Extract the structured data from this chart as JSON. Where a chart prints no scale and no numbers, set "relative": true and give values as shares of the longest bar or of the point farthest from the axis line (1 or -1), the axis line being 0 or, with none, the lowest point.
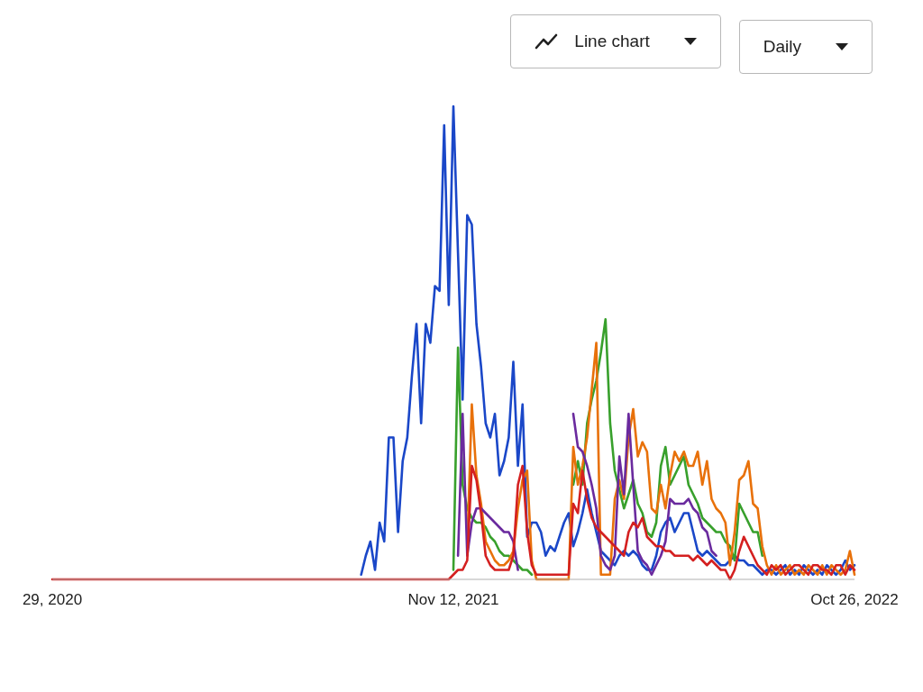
{
  "chart_data": {
    "type": "line",
    "relative": true,
    "annotations": [
      "Line chart",
      "Daily"
    ],
    "x": [
      "2020-11-29",
      "2021-08-20",
      "2021-08-24",
      "2021-08-28",
      "2021-09-01",
      "2021-09-05",
      "2021-09-09",
      "2021-09-13",
      "2021-09-17",
      "2021-09-21",
      "2021-09-25",
      "2021-09-29",
      "2021-10-03",
      "2021-10-07",
      "2021-10-11",
      "2021-10-15",
      "2021-10-19",
      "2021-10-23",
      "2021-10-27",
      "2021-10-31",
      "2021-11-04",
      "2021-11-08",
      "2021-11-12",
      "2021-11-16",
      "2021-11-20",
      "2021-11-24",
      "2021-11-28",
      "2021-12-02",
      "2021-12-06",
      "2021-12-10",
      "2021-12-14",
      "2021-12-18",
      "2021-12-22",
      "2021-12-26",
      "2021-12-30",
      "2022-01-03",
      "2022-01-07",
      "2022-01-11",
      "2022-01-15",
      "2022-01-19",
      "2022-01-23",
      "2022-01-27",
      "2022-01-31",
      "2022-02-04",
      "2022-02-08",
      "2022-02-12",
      "2022-02-16",
      "2022-02-20",
      "2022-02-24",
      "2022-02-28",
      "2022-03-04",
      "2022-03-08",
      "2022-03-12",
      "2022-03-16",
      "2022-03-20",
      "2022-03-24",
      "2022-03-28",
      "2022-04-01",
      "2022-04-05",
      "2022-04-09",
      "2022-04-13",
      "2022-04-17",
      "2022-04-21",
      "2022-04-25",
      "2022-04-29",
      "2022-05-03",
      "2022-05-07",
      "2022-05-11",
      "2022-05-15",
      "2022-05-19",
      "2022-05-23",
      "2022-05-27",
      "2022-05-31",
      "2022-06-04",
      "2022-06-08",
      "2022-06-12",
      "2022-06-16",
      "2022-06-20",
      "2022-06-24",
      "2022-06-28",
      "2022-07-02",
      "2022-07-06",
      "2022-07-10",
      "2022-07-14",
      "2022-07-18",
      "2022-07-22",
      "2022-07-26",
      "2022-07-30",
      "2022-08-03",
      "2022-08-07",
      "2022-08-11",
      "2022-08-15",
      "2022-08-19",
      "2022-08-23",
      "2022-08-27",
      "2022-08-31",
      "2022-09-04",
      "2022-09-08",
      "2022-09-12",
      "2022-09-16",
      "2022-09-20",
      "2022-09-24",
      "2022-09-28",
      "2022-10-02",
      "2022-10-06",
      "2022-10-10",
      "2022-10-14",
      "2022-10-18",
      "2022-10-22",
      "2022-10-26"
    ],
    "xlim": [
      "2020-11-29",
      "2022-10-26"
    ],
    "xticks": [
      {
        "value": "2020-11-29",
        "label": "29, 2020"
      },
      {
        "value": "2021-11-12",
        "label": "Nov 12, 2021"
      },
      {
        "value": "2022-10-26",
        "label": "Oct 26, 2022"
      }
    ],
    "series": [
      {
        "color": "#1a47c8",
        "values": [
          null,
          null,
          0.01,
          0.05,
          0.08,
          0.02,
          0.12,
          0.08,
          0.3,
          0.3,
          0.1,
          0.25,
          0.3,
          0.43,
          0.54,
          0.33,
          0.54,
          0.5,
          0.62,
          0.61,
          0.96,
          0.58,
          1.0,
          0.69,
          0.38,
          0.77,
          0.75,
          0.54,
          0.45,
          0.33,
          0.3,
          0.35,
          0.22,
          0.25,
          0.3,
          0.46,
          0.24,
          0.37,
          0.09,
          0.12,
          0.12,
          0.1,
          0.05,
          0.07,
          0.06,
          0.09,
          0.12,
          0.14,
          0.07,
          0.1,
          0.14,
          0.19,
          0.14,
          0.1,
          0.06,
          0.05,
          0.04,
          0.03,
          0.05,
          0.06,
          0.05,
          0.06,
          0.05,
          0.03,
          0.02,
          0.02,
          0.05,
          0.1,
          0.12,
          0.13,
          0.1,
          0.12,
          0.14,
          0.14,
          0.1,
          0.06,
          0.05,
          0.06,
          0.05,
          0.04,
          0.03,
          0.03,
          0.04,
          0.05,
          0.04,
          0.04,
          0.03,
          0.03,
          0.02,
          0.01,
          0.02,
          0.02,
          0.01,
          0.02,
          0.03,
          0.01,
          0.02,
          0.01,
          0.03,
          0.02,
          0.01,
          0.02,
          0.01,
          0.03,
          0.02,
          0.01,
          0.02,
          0.04,
          0.02,
          0.03
        ]
      },
      {
        "color": "#38a02c",
        "values": [
          null,
          null,
          null,
          null,
          null,
          null,
          null,
          null,
          null,
          null,
          null,
          null,
          null,
          null,
          null,
          null,
          null,
          null,
          null,
          null,
          null,
          null,
          0.02,
          0.49,
          0.2,
          0.15,
          0.13,
          0.12,
          0.12,
          0.11,
          0.09,
          0.08,
          0.06,
          0.05,
          0.05,
          0.04,
          0.03,
          0.02,
          0.02,
          0.01,
          null,
          null,
          null,
          null,
          null,
          null,
          null,
          null,
          0.2,
          0.25,
          0.2,
          0.33,
          0.38,
          0.42,
          0.48,
          0.55,
          0.33,
          0.23,
          0.19,
          0.15,
          0.18,
          0.21,
          0.16,
          0.14,
          0.1,
          0.09,
          0.12,
          0.24,
          0.28,
          0.2,
          0.22,
          0.24,
          0.26,
          0.2,
          0.18,
          0.16,
          0.13,
          0.12,
          0.11,
          0.1,
          0.1,
          0.08,
          0.07,
          0.04,
          0.16,
          0.14,
          0.12,
          0.1,
          0.1,
          0.05,
          null,
          null,
          null,
          null,
          null,
          null,
          null,
          null,
          null,
          null,
          null,
          null,
          null,
          null,
          null,
          null,
          null,
          null,
          null,
          null
        ]
      },
      {
        "color": "#e8710a",
        "values": [
          null,
          null,
          null,
          null,
          null,
          null,
          null,
          null,
          null,
          null,
          null,
          null,
          null,
          null,
          null,
          null,
          null,
          null,
          null,
          null,
          null,
          null,
          null,
          null,
          null,
          0.07,
          0.37,
          0.22,
          0.16,
          0.08,
          0.06,
          0.04,
          0.03,
          0.03,
          0.04,
          0.06,
          0.15,
          0.21,
          0.23,
          0.04,
          0,
          0,
          0,
          0,
          0,
          0,
          0,
          0,
          0.28,
          0.2,
          0.24,
          0.3,
          0.4,
          0.5,
          0.01,
          0.01,
          0.01,
          0.17,
          0.21,
          0.17,
          0.3,
          0.36,
          0.26,
          0.29,
          0.27,
          0.15,
          0.14,
          0.2,
          0.15,
          0.22,
          0.27,
          0.25,
          0.27,
          0.24,
          0.24,
          0.27,
          0.2,
          0.25,
          0.17,
          0.15,
          0.14,
          0.12,
          0.03,
          0.1,
          0.21,
          0.22,
          0.25,
          0.16,
          0.15,
          0.07,
          0.03,
          0.01,
          0.03,
          0.01,
          0.02,
          0.03,
          0.01,
          0.02,
          0.01,
          0.03,
          0.02,
          0.01,
          0.03,
          0.01,
          0.03,
          0.02,
          0.01,
          0.02,
          0.06,
          0.01
        ]
      },
      {
        "color": "#6a2a9e",
        "values": [
          null,
          null,
          null,
          null,
          null,
          null,
          null,
          null,
          null,
          null,
          null,
          null,
          null,
          null,
          null,
          null,
          null,
          null,
          null,
          null,
          null,
          null,
          null,
          0.05,
          0.35,
          0.05,
          0.12,
          0.15,
          0.15,
          0.14,
          0.13,
          0.12,
          0.11,
          0.1,
          0.1,
          0.08,
          0.02,
          null,
          null,
          null,
          null,
          null,
          null,
          null,
          null,
          null,
          null,
          null,
          0.35,
          0.28,
          0.27,
          0.24,
          0.2,
          0.15,
          0.05,
          0.03,
          0.02,
          0.05,
          0.26,
          0.18,
          0.35,
          0.2,
          0.06,
          0.04,
          0.03,
          0.01,
          0.03,
          0.05,
          0.08,
          0.17,
          0.16,
          0.16,
          0.16,
          0.17,
          0.15,
          0.14,
          0.11,
          0.1,
          0.06,
          0.05,
          null,
          null,
          null,
          null,
          null,
          null,
          null,
          null,
          null,
          null,
          null,
          null,
          null,
          null,
          null,
          null,
          null,
          null,
          null,
          null,
          null,
          null,
          null,
          null,
          null,
          null,
          null,
          null,
          null,
          null
        ]
      },
      {
        "color": "#d42020",
        "values": [
          0,
          0,
          0,
          0,
          0,
          0,
          0,
          0,
          0,
          0,
          0,
          0,
          0,
          0,
          0,
          0,
          0,
          0,
          0,
          0,
          0,
          0,
          0.01,
          0.02,
          0.02,
          0.04,
          0.24,
          0.21,
          0.14,
          0.05,
          0.03,
          0.02,
          0.02,
          0.02,
          0.02,
          0.05,
          0.2,
          0.24,
          0.1,
          0.03,
          0.01,
          0.01,
          0.01,
          0.01,
          0.01,
          0.01,
          0.01,
          0.01,
          0.16,
          0.14,
          0.23,
          0.17,
          0.13,
          0.11,
          0.1,
          0.09,
          0.08,
          0.07,
          0.06,
          0.05,
          0.1,
          0.12,
          0.11,
          0.13,
          0.09,
          0.08,
          0.07,
          0.07,
          0.06,
          0.06,
          0.05,
          0.05,
          0.05,
          0.05,
          0.04,
          0.05,
          0.04,
          0.03,
          0.04,
          0.03,
          0.02,
          0.02,
          0,
          0.02,
          0.06,
          0.09,
          0.07,
          0.05,
          0.03,
          0.02,
          0.01,
          0.03,
          0.02,
          0.03,
          0.01,
          0.02,
          0.03,
          0.03,
          0.02,
          0.01,
          0.03,
          0.03,
          0.02,
          0.02,
          0.01,
          0.03,
          0.03,
          0.01,
          0.03,
          0.02
        ]
      }
    ]
  }
}
